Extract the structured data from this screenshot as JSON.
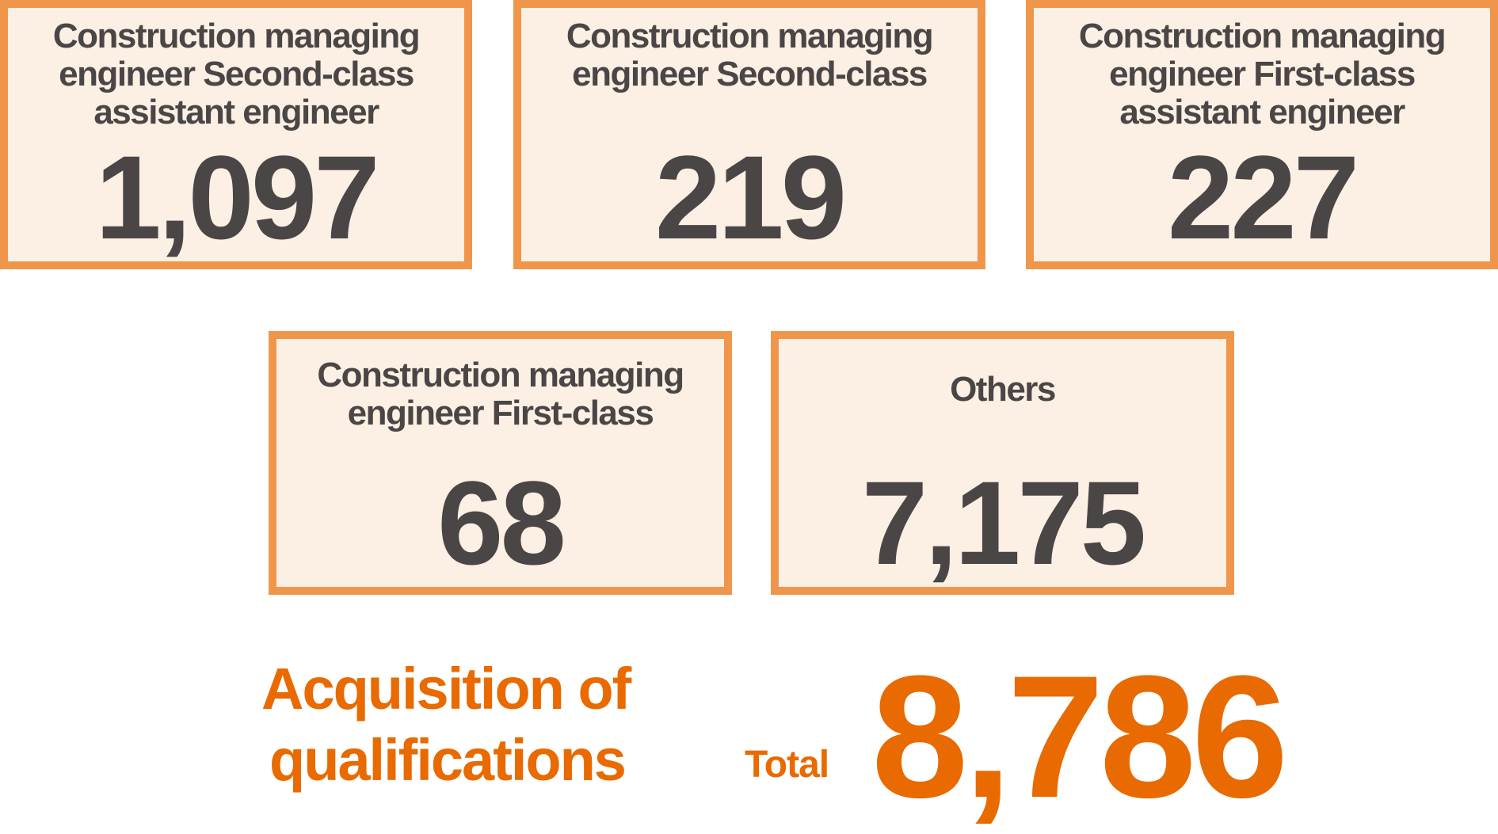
{
  "cards": [
    {
      "label": "Construction managing engineer Second-class assistant engineer",
      "value": "1,097"
    },
    {
      "label": "Construction managing engineer Second-class",
      "value": "219"
    },
    {
      "label": "Construction managing engineer First-class assistant engineer",
      "value": "227"
    },
    {
      "label": "Construction managing engineer First-class",
      "value": "68"
    },
    {
      "label": "Others",
      "value": "7,175"
    }
  ],
  "summary": {
    "heading_line1": "Acquisition of",
    "heading_line2": "qualifications",
    "total_label": "Total",
    "total_value": "8,786"
  },
  "colors": {
    "border": "#f0964a",
    "card_bg": "#fcefe4",
    "text": "#4a4646",
    "accent": "#e86a00"
  }
}
